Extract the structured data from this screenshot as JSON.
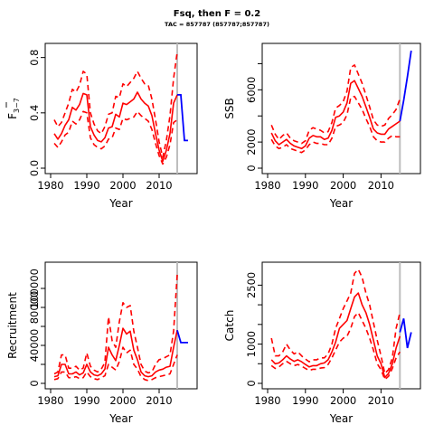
{
  "title": "Fsq, then F = 0.2",
  "subtitle": "TAC = 857787 (857787;857787)",
  "colors": {
    "estimate": "#ff0000",
    "projection": "#0000ff",
    "divider": "#bebebe",
    "axis": "#000000"
  },
  "chart_data": [
    {
      "type": "line",
      "xlabel": "Year",
      "ylabel": "F3-7",
      "ylabel_main": "F",
      "ylabel_sub": "3−7",
      "xlim": [
        1980,
        2019
      ],
      "ylim": [
        0,
        0.85
      ],
      "xticks": [
        1980,
        1990,
        2000,
        2010
      ],
      "yticks": [
        0.0,
        0.4,
        0.8
      ],
      "ytick_labels": [
        "0.0",
        "0.4",
        "0.8"
      ],
      "divider_x": 2015,
      "x": [
        1981,
        1982,
        1983,
        1984,
        1985,
        1986,
        1987,
        1988,
        1989,
        1990,
        1991,
        1992,
        1993,
        1994,
        1995,
        1996,
        1997,
        1998,
        1999,
        2000,
        2001,
        2002,
        2003,
        2004,
        2005,
        2006,
        2007,
        2008,
        2009,
        2010,
        2011,
        2012,
        2013,
        2014,
        2015
      ],
      "series": [
        {
          "role": "estimate",
          "values": [
            0.25,
            0.21,
            0.25,
            0.31,
            0.35,
            0.44,
            0.42,
            0.46,
            0.54,
            0.53,
            0.3,
            0.24,
            0.2,
            0.19,
            0.22,
            0.29,
            0.3,
            0.39,
            0.37,
            0.47,
            0.46,
            0.48,
            0.5,
            0.55,
            0.5,
            0.47,
            0.45,
            0.38,
            0.25,
            0.13,
            0.05,
            0.13,
            0.25,
            0.47,
            0.53
          ]
        },
        {
          "role": "upper",
          "values": [
            0.35,
            0.3,
            0.33,
            0.4,
            0.47,
            0.57,
            0.55,
            0.6,
            0.7,
            0.68,
            0.4,
            0.32,
            0.27,
            0.25,
            0.3,
            0.39,
            0.4,
            0.52,
            0.51,
            0.61,
            0.59,
            0.62,
            0.65,
            0.7,
            0.65,
            0.61,
            0.6,
            0.5,
            0.35,
            0.19,
            0.08,
            0.2,
            0.38,
            0.65,
            0.84
          ]
        },
        {
          "role": "lower",
          "values": [
            0.18,
            0.15,
            0.19,
            0.24,
            0.26,
            0.34,
            0.32,
            0.35,
            0.41,
            0.4,
            0.22,
            0.17,
            0.15,
            0.14,
            0.16,
            0.21,
            0.22,
            0.29,
            0.28,
            0.36,
            0.35,
            0.36,
            0.37,
            0.41,
            0.38,
            0.36,
            0.34,
            0.28,
            0.18,
            0.09,
            0.03,
            0.08,
            0.17,
            0.33,
            0.35
          ]
        }
      ],
      "projection": {
        "x": [
          2015,
          2016,
          2017,
          2018
        ],
        "values": [
          0.53,
          0.53,
          0.2,
          0.2
        ]
      }
    },
    {
      "type": "line",
      "xlabel": "Year",
      "ylabel": "SSB",
      "xlim": [
        1980,
        2019
      ],
      "ylim": [
        0,
        9000
      ],
      "xticks": [
        1980,
        1990,
        2000,
        2010
      ],
      "yticks": [
        0,
        2000,
        4000,
        6000,
        8000
      ],
      "ytick_labels": [
        "0",
        "2000",
        "",
        "6000",
        ""
      ],
      "divider_x": 2015,
      "x": [
        1981,
        1982,
        1983,
        1984,
        1985,
        1986,
        1987,
        1988,
        1989,
        1990,
        1991,
        1992,
        1993,
        1994,
        1995,
        1996,
        1997,
        1998,
        1999,
        2000,
        2001,
        2002,
        2003,
        2004,
        2005,
        2006,
        2007,
        2008,
        2009,
        2010,
        2011,
        2012,
        2013,
        2014,
        2015
      ],
      "series": [
        {
          "role": "estimate",
          "values": [
            2700,
            2100,
            1800,
            2000,
            2200,
            1900,
            1700,
            1600,
            1500,
            1700,
            2300,
            2500,
            2400,
            2400,
            2200,
            2300,
            2900,
            3900,
            4000,
            4300,
            5000,
            6500,
            6700,
            6100,
            5500,
            4700,
            3900,
            3000,
            2700,
            2600,
            2600,
            3000,
            3200,
            3400,
            3600
          ]
        },
        {
          "role": "upper",
          "values": [
            3300,
            2600,
            2200,
            2500,
            2700,
            2300,
            2100,
            2000,
            1900,
            2100,
            2900,
            3100,
            3000,
            2900,
            2700,
            2800,
            3500,
            4600,
            4800,
            5100,
            5900,
            7700,
            7900,
            7200,
            6500,
            5600,
            4700,
            3700,
            3300,
            3200,
            3300,
            3800,
            4100,
            4500,
            5300
          ]
        },
        {
          "role": "lower",
          "values": [
            2200,
            1700,
            1500,
            1600,
            1800,
            1500,
            1400,
            1300,
            1200,
            1400,
            1800,
            2000,
            1900,
            1900,
            1800,
            1800,
            2300,
            3200,
            3300,
            3500,
            4100,
            5400,
            5500,
            5000,
            4500,
            3800,
            3200,
            2400,
            2100,
            2000,
            2000,
            2300,
            2500,
            2400,
            2400
          ]
        }
      ],
      "projection": {
        "x": [
          2015,
          2016,
          2017,
          2018
        ],
        "values": [
          3600,
          5200,
          7000,
          9000
        ]
      }
    },
    {
      "type": "line",
      "xlabel": "Year",
      "ylabel": "Recruitment",
      "xlim": [
        1980,
        2019
      ],
      "ylim": [
        0,
        120000
      ],
      "xticks": [
        1980,
        1990,
        2000,
        2010
      ],
      "yticks": [
        0,
        20000,
        40000,
        60000,
        80000,
        100000
      ],
      "ytick_labels": [
        "0",
        "",
        "40000",
        "",
        "80000",
        "100000"
      ],
      "divider_x": 2015,
      "x": [
        1981,
        1982,
        1983,
        1984,
        1985,
        1986,
        1987,
        1988,
        1989,
        1990,
        1991,
        1992,
        1993,
        1994,
        1995,
        1996,
        1997,
        1998,
        1999,
        2000,
        2001,
        2002,
        2003,
        2004,
        2005,
        2006,
        2007,
        2008,
        2009,
        2010,
        2011,
        2012,
        2013,
        2014,
        2015
      ],
      "series": [
        {
          "role": "estimate",
          "values": [
            7000,
            8000,
            20000,
            20000,
            10000,
            10000,
            12000,
            9000,
            11000,
            20000,
            12000,
            9000,
            8000,
            10000,
            15000,
            38000,
            30000,
            24000,
            40000,
            58000,
            52000,
            55000,
            35000,
            25000,
            12000,
            8000,
            7000,
            8000,
            12000,
            14000,
            15000,
            17000,
            18000,
            38000,
            56000
          ]
        },
        {
          "role": "upper",
          "values": [
            10000,
            12000,
            30000,
            30000,
            16000,
            16000,
            18000,
            14000,
            16000,
            32000,
            18000,
            14000,
            12000,
            15000,
            22000,
            70000,
            45000,
            38000,
            65000,
            85000,
            80000,
            82000,
            55000,
            38000,
            20000,
            13000,
            11000,
            12000,
            20000,
            25000,
            26000,
            28000,
            30000,
            55000,
            115000
          ]
        },
        {
          "role": "lower",
          "values": [
            4000,
            5000,
            12000,
            12000,
            6000,
            6000,
            7000,
            5000,
            6000,
            12000,
            7000,
            5000,
            4000,
            6000,
            8000,
            20000,
            17000,
            14000,
            23000,
            38000,
            32000,
            35000,
            20000,
            15000,
            7000,
            4000,
            3000,
            4000,
            6000,
            7000,
            8000,
            9000,
            10000,
            20000,
            30000
          ]
        }
      ],
      "projection": {
        "x": [
          2015,
          2016,
          2017,
          2018
        ],
        "values": [
          56000,
          43000,
          43000,
          43000
        ]
      }
    },
    {
      "type": "line",
      "xlabel": "Year",
      "ylabel": "Catch",
      "xlim": [
        1980,
        2019
      ],
      "ylim": [
        0,
        2900
      ],
      "xticks": [
        1980,
        1990,
        2000,
        2010
      ],
      "yticks": [
        0,
        500,
        1000,
        1500,
        2000,
        2500
      ],
      "ytick_labels": [
        "0",
        "",
        "1000",
        "",
        "",
        "2500"
      ],
      "divider_x": 2015,
      "x": [
        1981,
        1982,
        1983,
        1984,
        1985,
        1986,
        1987,
        1988,
        1989,
        1990,
        1991,
        1992,
        1993,
        1994,
        1995,
        1996,
        1997,
        1998,
        1999,
        2000,
        2001,
        2002,
        2003,
        2004,
        2005,
        2006,
        2007,
        2008,
        2009,
        2010,
        2011,
        2012,
        2013,
        2014,
        2015
      ],
      "series": [
        {
          "role": "estimate",
          "values": [
            600,
            500,
            520,
            600,
            700,
            620,
            560,
            600,
            550,
            480,
            420,
            450,
            450,
            500,
            520,
            600,
            800,
            1050,
            1400,
            1500,
            1600,
            1900,
            2200,
            2300,
            2000,
            1800,
            1500,
            1100,
            700,
            500,
            150,
            250,
            500,
            900,
            1200
          ]
        },
        {
          "role": "upper",
          "values": [
            1150,
            700,
            700,
            800,
            1000,
            850,
            750,
            800,
            700,
            620,
            550,
            600,
            600,
            650,
            650,
            750,
            1000,
            1400,
            1650,
            1900,
            2100,
            2300,
            2800,
            2900,
            2700,
            2300,
            2000,
            1550,
            1100,
            700,
            250,
            350,
            650,
            1400,
            1800
          ]
        },
        {
          "role": "lower",
          "values": [
            450,
            380,
            420,
            500,
            560,
            500,
            450,
            480,
            440,
            380,
            330,
            360,
            360,
            390,
            400,
            480,
            650,
            850,
            1050,
            1150,
            1200,
            1400,
            1700,
            1800,
            1600,
            1400,
            1150,
            850,
            500,
            350,
            100,
            180,
            380,
            650,
            800
          ]
        }
      ],
      "projection": {
        "x": [
          2015,
          2016,
          2017,
          2018
        ],
        "values": [
          1300,
          1650,
          900,
          1300
        ]
      }
    }
  ]
}
